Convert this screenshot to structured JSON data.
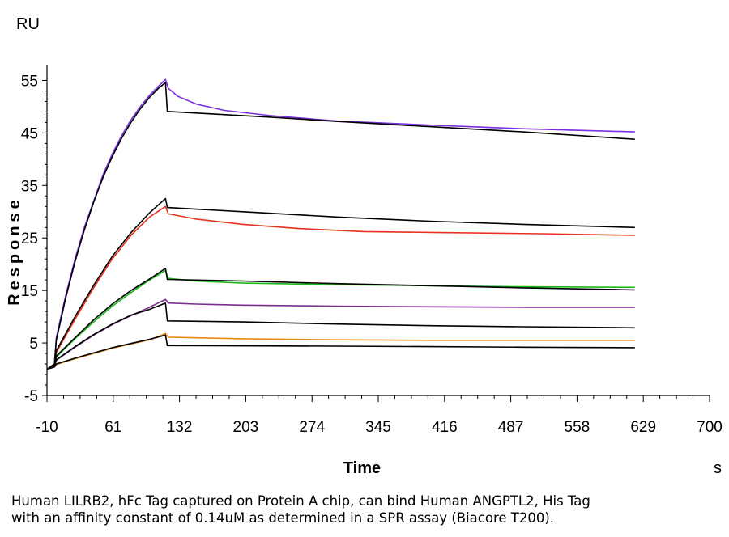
{
  "chart_data": {
    "type": "line",
    "ylabel": "Response",
    "y_unit": "RU",
    "xlabel": "Time",
    "x_unit": "s",
    "xlim": [
      -10,
      700
    ],
    "ylim": [
      -5,
      58
    ],
    "x_ticks": [
      -10,
      61,
      132,
      203,
      274,
      345,
      416,
      487,
      558,
      629,
      700
    ],
    "y_ticks": [
      -5,
      5,
      15,
      25,
      35,
      45,
      55
    ],
    "grid": false,
    "legend": "none",
    "association_end": 120,
    "series": [
      {
        "color": "#7b2fe0",
        "role": "measured",
        "points": [
          [
            -10,
            0
          ],
          [
            -2,
            1
          ],
          [
            0,
            6
          ],
          [
            10,
            14
          ],
          [
            20,
            21
          ],
          [
            30,
            27
          ],
          [
            40,
            32
          ],
          [
            50,
            37
          ],
          [
            60,
            41
          ],
          [
            70,
            44.5
          ],
          [
            80,
            47.5
          ],
          [
            90,
            50
          ],
          [
            100,
            52.2
          ],
          [
            110,
            54
          ],
          [
            117,
            55.2
          ],
          [
            120,
            53.5
          ],
          [
            130,
            52
          ],
          [
            150,
            50.5
          ],
          [
            180,
            49.3
          ],
          [
            230,
            48.3
          ],
          [
            300,
            47.3
          ],
          [
            400,
            46.5
          ],
          [
            500,
            45.8
          ],
          [
            620,
            45.2
          ]
        ]
      },
      {
        "color": "#000000",
        "role": "fit",
        "points": [
          [
            -10,
            0
          ],
          [
            -2,
            1
          ],
          [
            0,
            5.5
          ],
          [
            10,
            13.5
          ],
          [
            20,
            20.5
          ],
          [
            30,
            26.5
          ],
          [
            40,
            31.8
          ],
          [
            50,
            36.5
          ],
          [
            60,
            40.5
          ],
          [
            70,
            44
          ],
          [
            80,
            47
          ],
          [
            90,
            49.6
          ],
          [
            100,
            51.8
          ],
          [
            110,
            53.6
          ],
          [
            117,
            54.6
          ],
          [
            119,
            49.1
          ],
          [
            160,
            48.7
          ],
          [
            230,
            48
          ],
          [
            300,
            47.2
          ],
          [
            400,
            46.2
          ],
          [
            500,
            45.2
          ],
          [
            620,
            43.8
          ]
        ]
      },
      {
        "color": "#e8301c",
        "role": "measured",
        "points": [
          [
            -10,
            0
          ],
          [
            -2,
            1
          ],
          [
            0,
            3.2
          ],
          [
            20,
            9.5
          ],
          [
            40,
            15.5
          ],
          [
            60,
            21
          ],
          [
            80,
            25.5
          ],
          [
            100,
            29
          ],
          [
            117,
            31
          ],
          [
            120,
            29.6
          ],
          [
            150,
            28.6
          ],
          [
            200,
            27.6
          ],
          [
            260,
            26.8
          ],
          [
            330,
            26.2
          ],
          [
            420,
            26
          ],
          [
            520,
            25.8
          ],
          [
            620,
            25.5
          ]
        ]
      },
      {
        "color": "#000000",
        "role": "fit",
        "points": [
          [
            -10,
            0
          ],
          [
            -2,
            1
          ],
          [
            0,
            3.5
          ],
          [
            20,
            10
          ],
          [
            40,
            16
          ],
          [
            60,
            21.5
          ],
          [
            80,
            26
          ],
          [
            100,
            29.8
          ],
          [
            117,
            32.5
          ],
          [
            119,
            30.8
          ],
          [
            200,
            30
          ],
          [
            300,
            29
          ],
          [
            400,
            28.2
          ],
          [
            500,
            27.6
          ],
          [
            620,
            27
          ]
        ]
      },
      {
        "color": "#1db81d",
        "role": "measured",
        "points": [
          [
            -10,
            0
          ],
          [
            -2,
            0.8
          ],
          [
            0,
            2.3
          ],
          [
            20,
            5.8
          ],
          [
            40,
            9
          ],
          [
            60,
            12
          ],
          [
            80,
            14.6
          ],
          [
            100,
            17
          ],
          [
            117,
            18.8
          ],
          [
            120,
            17.3
          ],
          [
            150,
            16.8
          ],
          [
            200,
            16.4
          ],
          [
            300,
            16.1
          ],
          [
            400,
            15.9
          ],
          [
            500,
            15.7
          ],
          [
            620,
            15.6
          ]
        ]
      },
      {
        "color": "#000000",
        "role": "fit",
        "points": [
          [
            -10,
            0
          ],
          [
            -2,
            0.8
          ],
          [
            0,
            2.5
          ],
          [
            20,
            6
          ],
          [
            40,
            9.4
          ],
          [
            60,
            12.4
          ],
          [
            80,
            15
          ],
          [
            100,
            17.2
          ],
          [
            117,
            19.2
          ],
          [
            119,
            17.1
          ],
          [
            200,
            16.8
          ],
          [
            300,
            16.3
          ],
          [
            400,
            15.9
          ],
          [
            500,
            15.5
          ],
          [
            620,
            15.1
          ]
        ]
      },
      {
        "color": "#7a2e8e",
        "role": "measured",
        "points": [
          [
            -10,
            0
          ],
          [
            -2,
            0.6
          ],
          [
            0,
            1.7
          ],
          [
            20,
            4.2
          ],
          [
            40,
            6.5
          ],
          [
            60,
            8.5
          ],
          [
            80,
            10.2
          ],
          [
            100,
            11.8
          ],
          [
            117,
            13.3
          ],
          [
            120,
            12.6
          ],
          [
            150,
            12.4
          ],
          [
            200,
            12.2
          ],
          [
            300,
            12
          ],
          [
            400,
            11.9
          ],
          [
            500,
            11.8
          ],
          [
            620,
            11.8
          ]
        ]
      },
      {
        "color": "#000000",
        "role": "fit",
        "points": [
          [
            -10,
            0
          ],
          [
            -2,
            0.6
          ],
          [
            0,
            1.8
          ],
          [
            20,
            4.3
          ],
          [
            40,
            6.6
          ],
          [
            60,
            8.6
          ],
          [
            80,
            10.3
          ],
          [
            100,
            11.4
          ],
          [
            117,
            12.6
          ],
          [
            119,
            9.2
          ],
          [
            200,
            9
          ],
          [
            300,
            8.6
          ],
          [
            400,
            8.3
          ],
          [
            500,
            8.1
          ],
          [
            620,
            7.9
          ]
        ]
      },
      {
        "color": "#e88a1a",
        "role": "measured",
        "points": [
          [
            -10,
            0
          ],
          [
            -2,
            0.4
          ],
          [
            0,
            0.9
          ],
          [
            20,
            2
          ],
          [
            40,
            3
          ],
          [
            60,
            4
          ],
          [
            80,
            4.8
          ],
          [
            100,
            5.6
          ],
          [
            117,
            6.8
          ],
          [
            120,
            6.1
          ],
          [
            200,
            5.8
          ],
          [
            300,
            5.6
          ],
          [
            400,
            5.5
          ],
          [
            500,
            5.5
          ],
          [
            620,
            5.5
          ]
        ]
      },
      {
        "color": "#000000",
        "role": "fit",
        "points": [
          [
            -10,
            0
          ],
          [
            -2,
            0.4
          ],
          [
            0,
            1
          ],
          [
            20,
            2.1
          ],
          [
            40,
            3.1
          ],
          [
            60,
            4.1
          ],
          [
            80,
            4.9
          ],
          [
            100,
            5.7
          ],
          [
            117,
            6.5
          ],
          [
            119,
            4.5
          ],
          [
            300,
            4.4
          ],
          [
            400,
            4.3
          ],
          [
            500,
            4.2
          ],
          [
            620,
            4.1
          ]
        ]
      }
    ]
  },
  "caption": {
    "line1": "Human LILRB2, hFc Tag captured on Protein A chip, can bind Human ANGPTL2, His Tag",
    "line2": "with an affinity constant of 0.14uM as determined in a SPR assay (Biacore T200)."
  }
}
